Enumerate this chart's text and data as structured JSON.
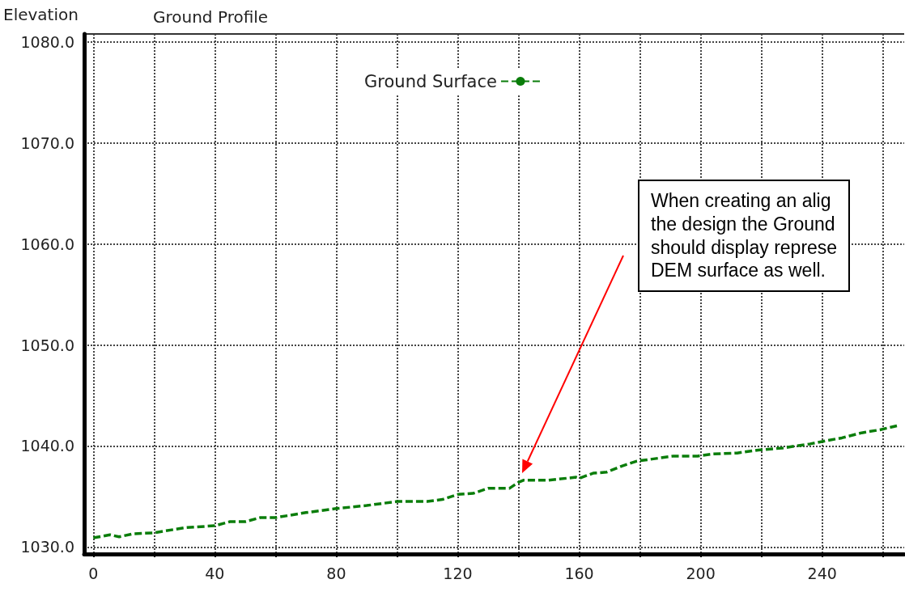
{
  "chart_data": {
    "type": "line",
    "title": "Ground Profile",
    "ylabel": "Elevation",
    "x": [
      0,
      5.5,
      8.5,
      13,
      20,
      30,
      40,
      45,
      50,
      55,
      60,
      70,
      80,
      90,
      100,
      110,
      115,
      120,
      125,
      130,
      137,
      140,
      141.6,
      149.6,
      159,
      160,
      164.6,
      169,
      174,
      179,
      184,
      191,
      199,
      204,
      212,
      219,
      227,
      236,
      241,
      246.5,
      253,
      259,
      264.6
    ],
    "series": [
      {
        "name": "Ground Surface",
        "color": "#0a7d0a",
        "values": [
          1030.9,
          1031.2,
          1031.0,
          1031.3,
          1031.4,
          1031.9,
          1032.1,
          1032.5,
          1032.5,
          1032.9,
          1032.9,
          1033.4,
          1033.8,
          1034.1,
          1034.5,
          1034.5,
          1034.7,
          1035.2,
          1035.3,
          1035.8,
          1035.8,
          1036.4,
          1036.6,
          1036.6,
          1036.9,
          1036.8,
          1037.3,
          1037.4,
          1038.0,
          1038.5,
          1038.7,
          1039.0,
          1039.0,
          1039.2,
          1039.3,
          1039.6,
          1039.8,
          1040.2,
          1040.5,
          1040.8,
          1041.3,
          1041.6,
          1042.0
        ]
      }
    ],
    "xlim": [
      -3,
      267
    ],
    "xticks": [
      0,
      {
        "value": 20,
        "label": null
      },
      40,
      {
        "value": 60,
        "label": null
      },
      80,
      {
        "value": 100,
        "label": null
      },
      120,
      {
        "value": 140,
        "label": null
      },
      160,
      {
        "value": 180,
        "label": null
      },
      200,
      {
        "value": 220,
        "label": null
      },
      240,
      {
        "value": 260,
        "label": null
      }
    ],
    "ylim": [
      1029.3,
      1080.8
    ],
    "yticks": [
      {
        "value": 1030,
        "label": "1030.0"
      },
      {
        "value": 1040,
        "label": "1040.0"
      },
      {
        "value": 1050,
        "label": "1050.0"
      },
      {
        "value": 1060,
        "label": "1060.0"
      },
      {
        "value": 1070,
        "label": "1070.0"
      },
      {
        "value": 1080,
        "label": "1080.0"
      }
    ],
    "grid": true,
    "legend": "top",
    "line_style": "dashed",
    "marker": "none",
    "annotations": [
      "When creating an alig\nthe design the Ground\nshould display represe\nDEM surface as well."
    ]
  }
}
